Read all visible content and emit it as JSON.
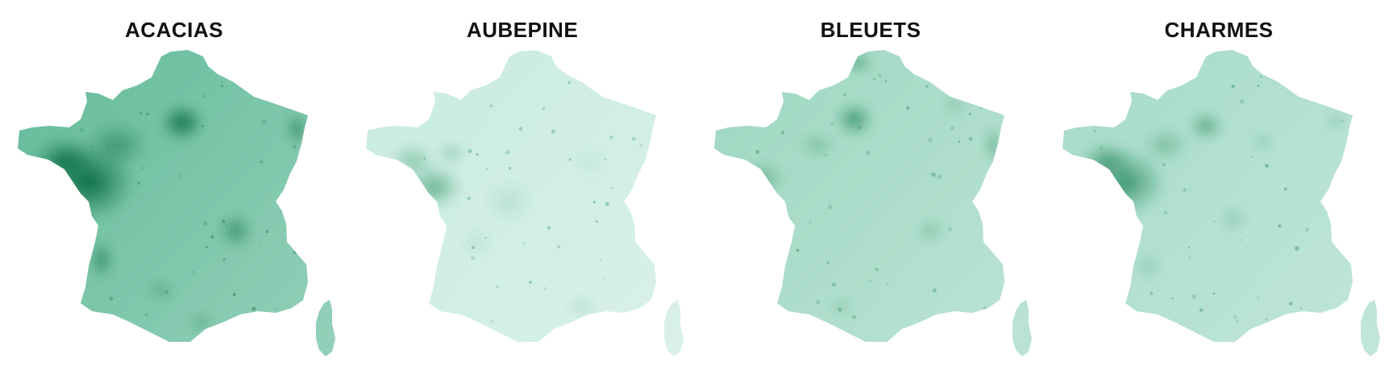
{
  "figure": {
    "panels": [
      {
        "title": "ACACIAS",
        "intensity": 1.0,
        "base_color": "#5fb997",
        "hotspot_color": "#05653a"
      },
      {
        "title": "AUBEPINE",
        "intensity": 0.35,
        "base_color": "#c7ebde",
        "hotspot_color": "#1d8a5b"
      },
      {
        "title": "BLEUETS",
        "intensity": 0.6,
        "base_color": "#9bd6bf",
        "hotspot_color": "#177e52"
      },
      {
        "title": "CHARMES",
        "intensity": 0.55,
        "base_color": "#a3dac6",
        "hotspot_color": "#137a4e"
      }
    ]
  }
}
